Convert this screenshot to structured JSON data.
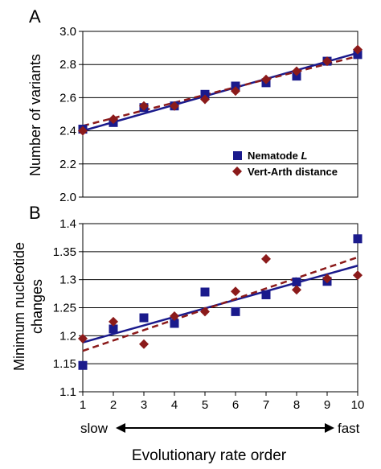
{
  "colors": {
    "nematode": "#1a1a8c",
    "vertarth": "#8b1a1a",
    "grid": "#000000"
  },
  "chart_data": [
    {
      "type": "scatter",
      "panel_label": "A",
      "ylabel": "Number of variants",
      "xlim": [
        1,
        10
      ],
      "ylim": [
        2.0,
        3.0
      ],
      "yticks": [
        "2.0",
        "2.2",
        "2.4",
        "2.6",
        "2.8",
        "3.0"
      ],
      "grid": true,
      "legend_position": "bottom-right",
      "series": [
        {
          "name": "Nematode L",
          "name_main": "Nematode",
          "name_italic": "L",
          "marker": "square",
          "x": [
            1,
            2,
            3,
            4,
            5,
            6,
            7,
            8,
            9,
            10
          ],
          "values": [
            2.41,
            2.45,
            2.54,
            2.55,
            2.62,
            2.67,
            2.69,
            2.73,
            2.82,
            2.86
          ],
          "trend": [
            2.4,
            2.87
          ]
        },
        {
          "name": "Vert-Arth distance",
          "marker": "diamond",
          "x": [
            1,
            2,
            3,
            4,
            5,
            6,
            7,
            8,
            9,
            10
          ],
          "values": [
            2.4,
            2.47,
            2.55,
            2.55,
            2.59,
            2.64,
            2.71,
            2.76,
            2.82,
            2.89
          ],
          "trend": [
            2.43,
            2.85
          ]
        }
      ]
    },
    {
      "type": "scatter",
      "panel_label": "B",
      "ylabel_line1": "Minimum nucleotide",
      "ylabel_line2": "changes",
      "xlim": [
        1,
        10
      ],
      "ylim": [
        1.1,
        1.4
      ],
      "yticks": [
        "1.1",
        "1.15",
        "1.2",
        "1.25",
        "1.3",
        "1.35",
        "1.4"
      ],
      "xticks": [
        "1",
        "2",
        "3",
        "4",
        "5",
        "6",
        "7",
        "8",
        "9",
        "10"
      ],
      "grid": true,
      "series": [
        {
          "name": "Nematode L",
          "marker": "square",
          "x": [
            1,
            2,
            3,
            4,
            5,
            6,
            7,
            8,
            9,
            10
          ],
          "values": [
            1.147,
            1.212,
            1.232,
            1.222,
            1.278,
            1.243,
            1.273,
            1.296,
            1.297,
            1.373
          ],
          "trend": [
            1.188,
            1.325
          ]
        },
        {
          "name": "Vert-Arth distance",
          "marker": "diamond",
          "x": [
            1,
            2,
            3,
            4,
            5,
            6,
            7,
            8,
            9,
            10
          ],
          "values": [
            1.195,
            1.225,
            1.185,
            1.235,
            1.243,
            1.279,
            1.337,
            1.282,
            1.302,
            1.308
          ],
          "trend": [
            1.173,
            1.34
          ]
        }
      ]
    }
  ],
  "axis": {
    "slow_label": "slow",
    "fast_label": "fast",
    "xlabel": "Evolutionary rate order"
  }
}
